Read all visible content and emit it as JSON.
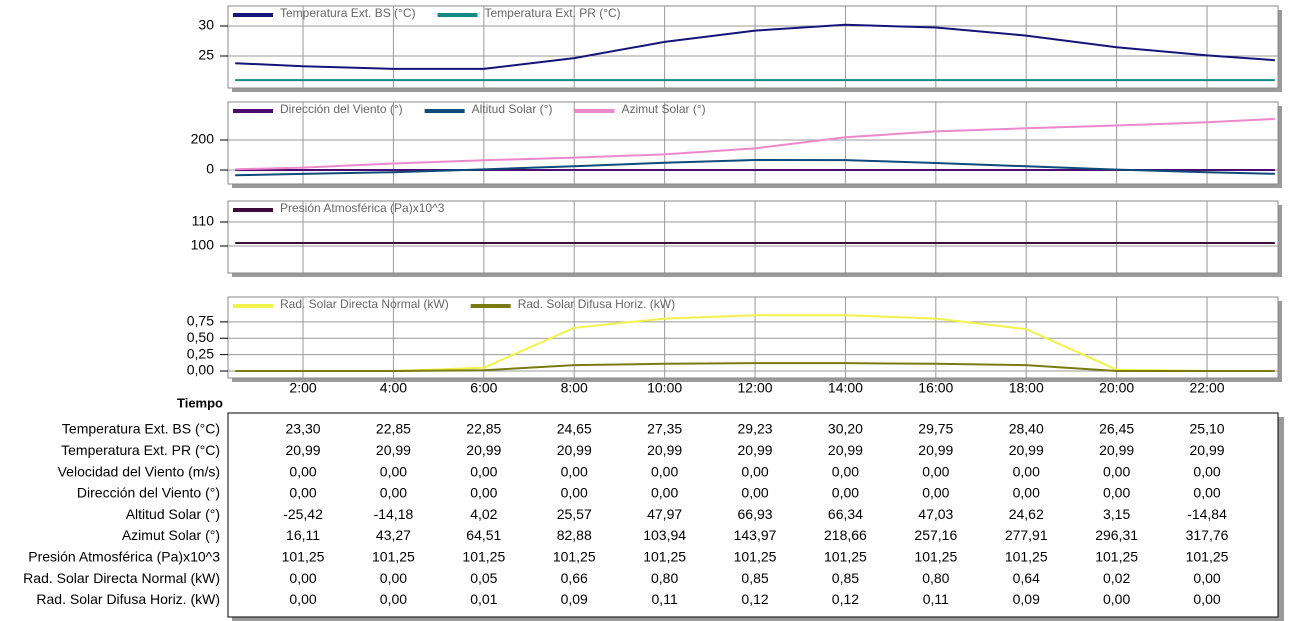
{
  "chart_data": [
    {
      "type": "line",
      "legend": "upper left",
      "grid": true,
      "x": [
        0.5,
        2,
        4,
        6,
        8,
        10,
        12,
        14,
        16,
        18,
        20,
        22,
        23.5
      ],
      "xlim": [
        0.34,
        23.57
      ],
      "ylim": [
        19.67,
        33.33
      ],
      "yticks": [
        25,
        30
      ],
      "series": [
        {
          "name": "Temperatura Ext. BS (°C)",
          "color": "#14147a",
          "values": [
            23.8,
            23.3,
            22.85,
            22.85,
            24.65,
            27.35,
            29.23,
            30.2,
            29.75,
            28.4,
            26.45,
            25.1,
            24.3
          ]
        },
        {
          "name": "Temperatura Ext. PR (°C)",
          "color": "#138a86",
          "values": [
            20.99,
            20.99,
            20.99,
            20.99,
            20.99,
            20.99,
            20.99,
            20.99,
            20.99,
            20.99,
            20.99,
            20.99,
            20.99
          ]
        }
      ]
    },
    {
      "type": "line",
      "legend": "upper left",
      "grid": true,
      "x": [
        0.5,
        2,
        4,
        6,
        8,
        10,
        12,
        14,
        16,
        18,
        20,
        22,
        23.5
      ],
      "xlim": [
        0.34,
        23.57
      ],
      "ylim": [
        -93,
        453
      ],
      "yticks": [
        0,
        200
      ],
      "series": [
        {
          "name": "Dirección del Viento (°)",
          "color": "#4a0a70",
          "values": [
            0,
            0,
            0,
            0,
            0,
            0,
            0,
            0,
            0,
            0,
            0,
            0,
            0
          ]
        },
        {
          "name": "Altitud Solar (°)",
          "color": "#0c4a7c",
          "values": [
            -35,
            -25.42,
            -14.18,
            4.02,
            25.57,
            47.97,
            66.93,
            66.34,
            47.03,
            24.62,
            3.15,
            -14.84,
            -25
          ]
        },
        {
          "name": "Azimut Solar (°)",
          "color": "#ee88cc",
          "values": [
            5,
            16.11,
            43.27,
            64.51,
            82.88,
            103.94,
            143.97,
            218.66,
            257.16,
            277.91,
            296.31,
            317.76,
            340
          ]
        }
      ]
    },
    {
      "type": "line",
      "legend": "upper left",
      "grid": true,
      "x": [
        0.5,
        2,
        4,
        6,
        8,
        10,
        12,
        14,
        16,
        18,
        20,
        22,
        23.5
      ],
      "xlim": [
        0.34,
        23.57
      ],
      "ylim": [
        88.75,
        118.75
      ],
      "yticks": [
        100,
        110
      ],
      "series": [
        {
          "name": "Presión Atmosférica (Pa)x10^3",
          "color": "#3c0a3c",
          "values": [
            101.25,
            101.25,
            101.25,
            101.25,
            101.25,
            101.25,
            101.25,
            101.25,
            101.25,
            101.25,
            101.25,
            101.25,
            101.25
          ]
        }
      ]
    },
    {
      "type": "line",
      "legend": "upper left",
      "grid": true,
      "x": [
        0.5,
        2,
        4,
        6,
        8,
        10,
        12,
        14,
        16,
        18,
        20,
        22,
        23.5
      ],
      "xlim": [
        0.34,
        23.57
      ],
      "ylim": [
        -0.107,
        1.13
      ],
      "yticks": [
        {
          "value": 0,
          "label": "0,00"
        },
        {
          "value": 0.25,
          "label": "0,25"
        },
        {
          "value": 0.5,
          "label": "0,50"
        },
        {
          "value": 0.75,
          "label": "0,75"
        }
      ],
      "xlabel": "Tiempo",
      "xticks": [
        {
          "value": 2,
          "label": "2:00"
        },
        {
          "value": 4,
          "label": "4:00"
        },
        {
          "value": 6,
          "label": "6:00"
        },
        {
          "value": 8,
          "label": "8:00"
        },
        {
          "value": 10,
          "label": "10:00"
        },
        {
          "value": 12,
          "label": "12:00"
        },
        {
          "value": 14,
          "label": "14:00"
        },
        {
          "value": 16,
          "label": "16:00"
        },
        {
          "value": 18,
          "label": "18:00"
        },
        {
          "value": 20,
          "label": "20:00"
        },
        {
          "value": 22,
          "label": "22:00"
        }
      ],
      "series": [
        {
          "name": "Rad. Solar Directa Normal (kW)",
          "color": "#f2f24a",
          "values": [
            0,
            0,
            0,
            0.05,
            0.66,
            0.8,
            0.85,
            0.85,
            0.8,
            0.64,
            0.02,
            0,
            0
          ]
        },
        {
          "name": "Rad. Solar Difusa Horiz. (kW)",
          "color": "#7a7a12",
          "values": [
            0,
            0,
            0,
            0.01,
            0.09,
            0.11,
            0.12,
            0.12,
            0.11,
            0.09,
            0,
            0,
            0
          ]
        }
      ]
    }
  ],
  "table": {
    "row_labels": [
      "Temperatura Ext. BS (°C)",
      "Temperatura Ext. PR (°C)",
      "Velocidad del Viento (m/s)",
      "Dirección del Viento (°)",
      "Altitud Solar (°)",
      "Azimut Solar (°)",
      "Presión Atmosférica (Pa)x10^3",
      "Rad. Solar Directa Normal (kW)",
      "Rad. Solar Difusa Horiz. (kW)"
    ],
    "rows": [
      [
        "23,30",
        "22,85",
        "22,85",
        "24,65",
        "27,35",
        "29,23",
        "30,20",
        "29,75",
        "28,40",
        "26,45",
        "25,10"
      ],
      [
        "20,99",
        "20,99",
        "20,99",
        "20,99",
        "20,99",
        "20,99",
        "20,99",
        "20,99",
        "20,99",
        "20,99",
        "20,99"
      ],
      [
        "0,00",
        "0,00",
        "0,00",
        "0,00",
        "0,00",
        "0,00",
        "0,00",
        "0,00",
        "0,00",
        "0,00",
        "0,00"
      ],
      [
        "0,00",
        "0,00",
        "0,00",
        "0,00",
        "0,00",
        "0,00",
        "0,00",
        "0,00",
        "0,00",
        "0,00",
        "0,00"
      ],
      [
        "-25,42",
        "-14,18",
        "4,02",
        "25,57",
        "47,97",
        "66,93",
        "66,34",
        "47,03",
        "24,62",
        "3,15",
        "-14,84"
      ],
      [
        "16,11",
        "43,27",
        "64,51",
        "82,88",
        "103,94",
        "143,97",
        "218,66",
        "257,16",
        "277,91",
        "296,31",
        "317,76"
      ],
      [
        "101,25",
        "101,25",
        "101,25",
        "101,25",
        "101,25",
        "101,25",
        "101,25",
        "101,25",
        "101,25",
        "101,25",
        "101,25"
      ],
      [
        "0,00",
        "0,00",
        "0,05",
        "0,66",
        "0,80",
        "0,85",
        "0,85",
        "0,80",
        "0,64",
        "0,02",
        "0,00"
      ],
      [
        "0,00",
        "0,00",
        "0,01",
        "0,09",
        "0,11",
        "0,12",
        "0,12",
        "0,11",
        "0,09",
        "0,00",
        "0,00"
      ]
    ]
  }
}
